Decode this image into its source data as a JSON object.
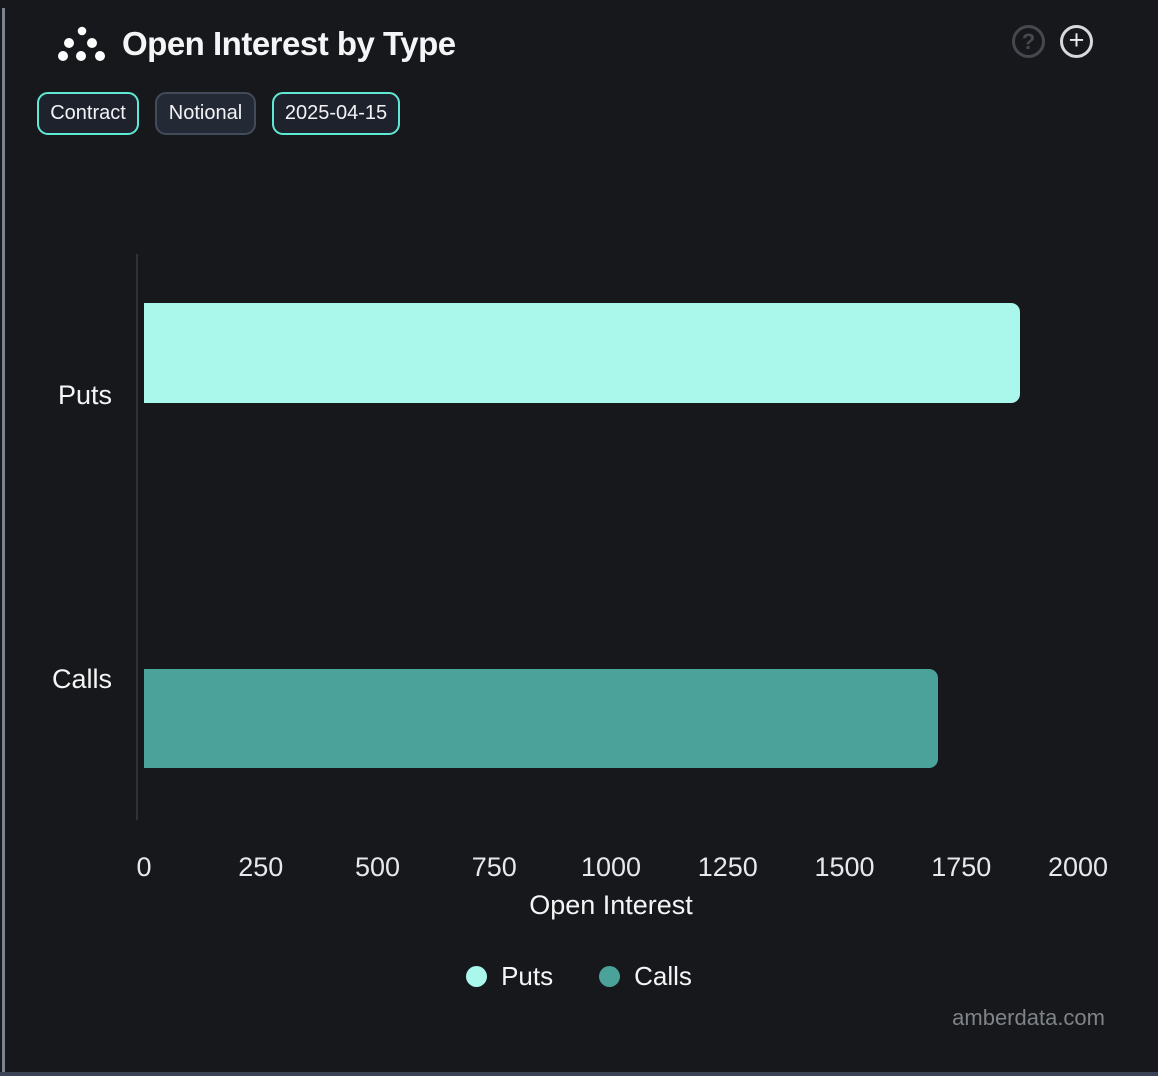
{
  "header": {
    "title": "Open Interest by Type",
    "help_glyph": "?",
    "add_glyph": "+"
  },
  "toolbar": {
    "buttons": [
      {
        "label": "Contract",
        "active": true
      },
      {
        "label": "Notional",
        "active": false
      },
      {
        "label": "2025-04-15",
        "active": true
      }
    ]
  },
  "chart_data": {
    "type": "bar",
    "orientation": "horizontal",
    "title": "Open Interest by Type",
    "categories": [
      "Puts",
      "Calls"
    ],
    "series": [
      {
        "name": "Puts",
        "value": 1875,
        "color": "#aaf8ec"
      },
      {
        "name": "Calls",
        "value": 1700,
        "color": "#4ba29a"
      }
    ],
    "xlabel": "Open Interest",
    "x_ticks": [
      0,
      250,
      500,
      750,
      1000,
      1250,
      1500,
      1750,
      2000
    ],
    "xlim": [
      0,
      2000
    ],
    "grid": false,
    "legend_position": "bottom"
  },
  "watermark": "amberdata.com",
  "colors": {
    "background": "#16181b",
    "accent_teal": "#5fe8d4",
    "puts_bar": "#aaf8ec",
    "calls_bar": "#4ba29a"
  }
}
